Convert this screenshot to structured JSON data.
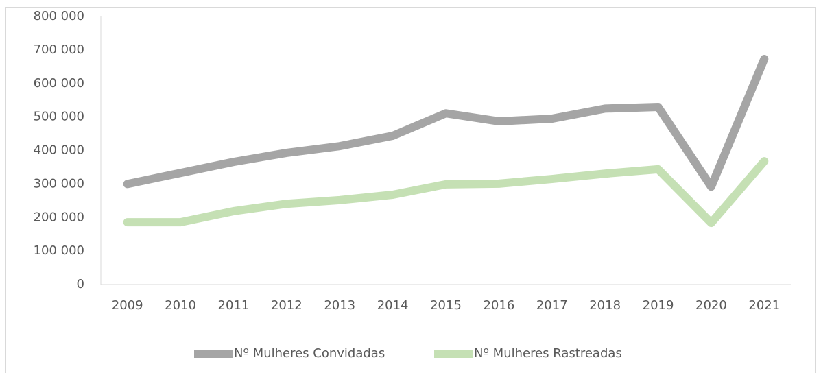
{
  "chart_data": {
    "type": "line",
    "categories": [
      "2009",
      "2010",
      "2011",
      "2012",
      "2013",
      "2014",
      "2015",
      "2016",
      "2017",
      "2018",
      "2019",
      "2020",
      "2021"
    ],
    "series": [
      {
        "name": "Nº Mulheres Convidadas",
        "color": "#a5a5a5",
        "values": [
          300000,
          333000,
          366000,
          393000,
          413000,
          444000,
          511000,
          487000,
          495000,
          525000,
          530000,
          292000,
          673000
        ]
      },
      {
        "name": "Nº Mulheres Rastreadas",
        "color": "#c5e0b4",
        "values": [
          186000,
          186000,
          219000,
          241000,
          252000,
          268000,
          299000,
          301000,
          315000,
          331000,
          344000,
          184000,
          368000
        ]
      }
    ],
    "ylim": [
      0,
      800000
    ],
    "yticks": [
      0,
      {
        "value": 100000,
        "label": "100 000"
      },
      {
        "value": 200000,
        "label": "200 000"
      },
      {
        "value": 300000,
        "label": "300 000"
      },
      {
        "value": 400000,
        "label": "400 000"
      },
      {
        "value": 500000,
        "label": "500 000"
      },
      {
        "value": 600000,
        "label": "600 000"
      },
      {
        "value": 700000,
        "label": "700 000"
      },
      {
        "value": 800000,
        "label": "800 000"
      }
    ],
    "grid": false,
    "legend": "bottom"
  }
}
